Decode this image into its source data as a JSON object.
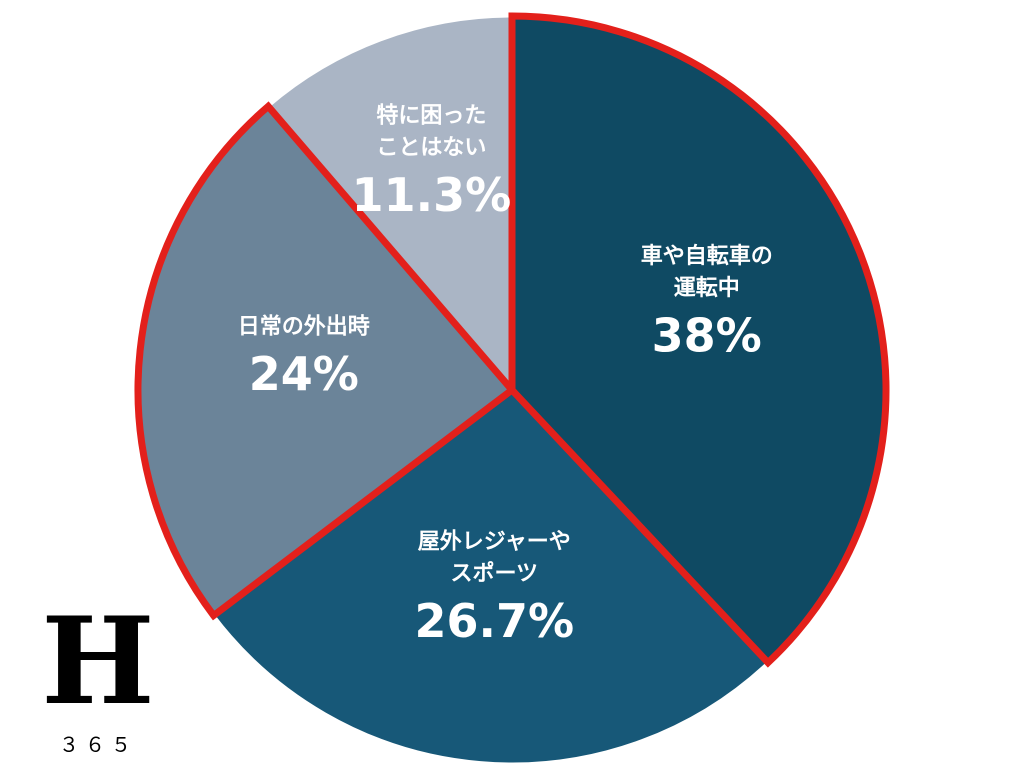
{
  "chart_data": {
    "type": "pie",
    "categories": [
      "車や自転車の\n運転中",
      "屋外レジャーや\nスポーツ",
      "日常の外出時",
      "特に困った\nことはない"
    ],
    "values": [
      38,
      26.7,
      24,
      11.3
    ],
    "value_labels": [
      "38%",
      "26.7%",
      "24%",
      "11.3%"
    ],
    "colors": [
      "#0f4a63",
      "#175878",
      "#6b8499",
      "#aab5c5"
    ],
    "edge_colors": [
      "#e3201b",
      "#ffffff",
      "#e3201b",
      "#ffffff"
    ]
  },
  "logo": {
    "letter": "H",
    "number": "３６５"
  }
}
